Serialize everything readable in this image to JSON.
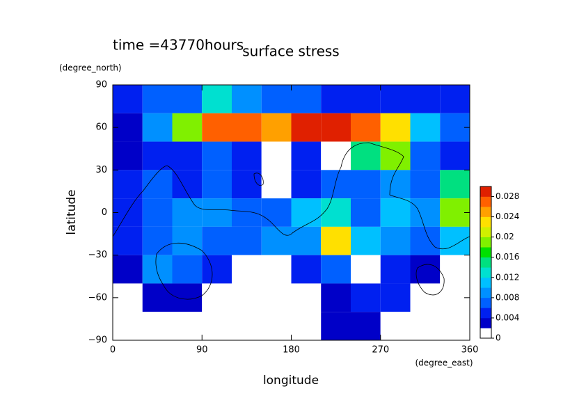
{
  "chart_data": {
    "type": "contour",
    "title": "surface stress",
    "subtitle": "time =43770hours",
    "x_label": "longitude",
    "x_units": "(degree_east)",
    "y_label": "latitude",
    "y_units": "(degree_north)",
    "x": [
      15,
      45,
      75,
      105,
      135,
      165,
      195,
      225,
      255,
      285,
      315,
      345
    ],
    "y": [
      80,
      60,
      40,
      20,
      0,
      -20,
      -40,
      -60,
      -80
    ],
    "values": [
      [
        0.004,
        0.006,
        0.006,
        0.012,
        0.008,
        0.006,
        0.006,
        0.005,
        0.004,
        0.004,
        0.004,
        0.004
      ],
      [
        0.003,
        0.008,
        0.018,
        0.026,
        0.026,
        0.024,
        0.028,
        0.028,
        0.026,
        0.022,
        0.01,
        0.006
      ],
      [
        0.002,
        0.004,
        0.004,
        0.006,
        0.004,
        0,
        0.004,
        0,
        0.014,
        0.018,
        0.006,
        0.004
      ],
      [
        0.004,
        0.006,
        0.004,
        0.006,
        0.005,
        0,
        0.004,
        0.006,
        0.006,
        0.008,
        0.006,
        0.014
      ],
      [
        0.004,
        0.006,
        0.008,
        0.008,
        0.006,
        0.006,
        0.01,
        0.012,
        0.006,
        0.01,
        0.008,
        0.018
      ],
      [
        0.004,
        0.006,
        0.008,
        0.006,
        0.006,
        0.008,
        0.008,
        0.022,
        0.01,
        0.008,
        0.006,
        0.01
      ],
      [
        0.003,
        0.008,
        0.006,
        0.004,
        0,
        0,
        0.004,
        0.006,
        0,
        0.004,
        0.002,
        0
      ],
      [
        0,
        0.002,
        0.002,
        0,
        0,
        0,
        0,
        0.002,
        0.004,
        0.004,
        0,
        0
      ],
      [
        0,
        0,
        0,
        0,
        0,
        0,
        0,
        0.002,
        0.002,
        0,
        0,
        0
      ]
    ],
    "xlim": [
      0,
      360
    ],
    "ylim": [
      -90,
      90
    ],
    "xticks": [
      0,
      90,
      180,
      270,
      360
    ],
    "yticks": [
      {
        "value": -90,
        "label": "−90"
      },
      {
        "value": -60,
        "label": "−60"
      },
      {
        "value": -30,
        "label": "−30"
      },
      0,
      30,
      60,
      90
    ],
    "clim": [
      0,
      0.03
    ],
    "cticks": [
      0,
      0.004,
      0.008,
      0.012,
      0.016,
      0.02,
      0.024,
      0.028
    ],
    "colormap": [
      "#ffffff",
      "#0000c8",
      "#0020f0",
      "#0060ff",
      "#0090ff",
      "#00c0ff",
      "#00e0d0",
      "#00e080",
      "#00e000",
      "#80f000",
      "#d0f000",
      "#ffe000",
      "#ffa000",
      "#ff6000",
      "#e02000"
    ]
  }
}
